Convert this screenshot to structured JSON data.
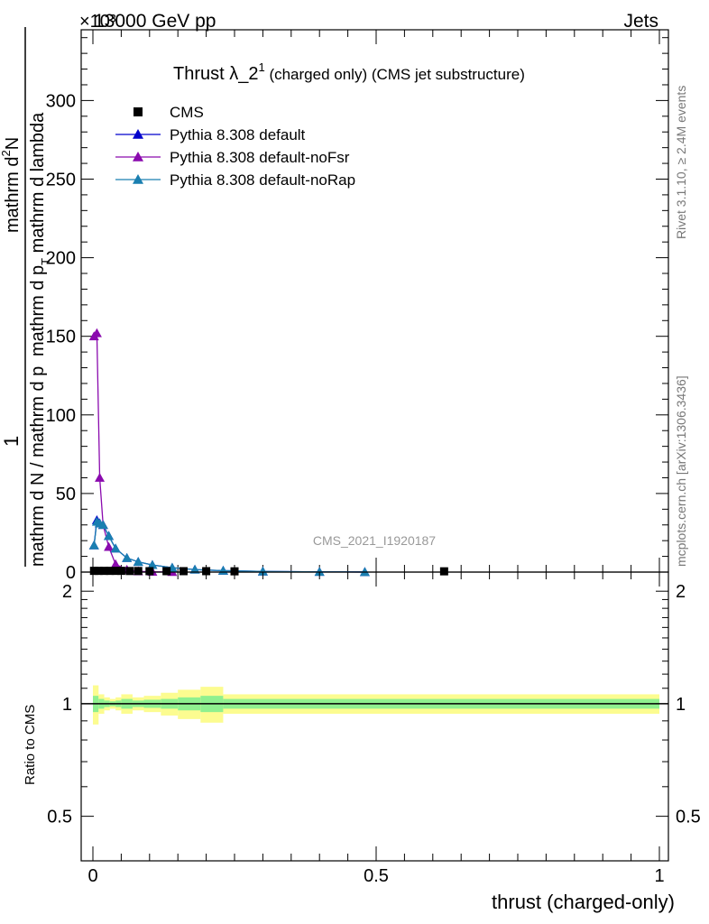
{
  "header": {
    "energy": "13000 GeV pp",
    "process": "Jets",
    "exponent": "×10³"
  },
  "chart_data": {
    "type": "line",
    "title_main": "Thrust λ_2",
    "title_sup": "1",
    "title_suffix": " (charged only) (CMS jet substructure)",
    "ylabel_numer": "1",
    "ylabel_denom_text": "mathrm d N / mathrm d p",
    "ylabel_numer_main": "mathrm d",
    "ylabel_numer_sup": "2",
    "ylabel_numer_N": "N",
    "ylabel_upper_text": "mathrm d p",
    "ylabel_upper_tail": " mathrm d lambda",
    "ylabel_mid_text": " mathrm d p",
    "ylabel_sub_T": "T",
    "ylabel_mathrm": "mathrm",
    "xlabel": "thrust (charged-only)",
    "ratio_ylabel": "Ratio to CMS",
    "watermark": "CMS_2021_I1920187",
    "side_label_top": "Rivet 3.1.10, ≥ 2.4M events",
    "side_label_bottom": "mcplots.cern.ch [arXiv:1306.3436]",
    "xlim": [
      0,
      1
    ],
    "ylim_main": [
      0,
      345
    ],
    "ratio_ylim": [
      0.38,
      2.25
    ],
    "main_yticks": [
      "0",
      "50",
      "100",
      "150",
      "200",
      "250",
      "300"
    ],
    "xticks": [
      "0",
      "0.5",
      "1"
    ],
    "ratio_yticks": [
      "0.5",
      "1",
      "2"
    ],
    "legend": [
      {
        "label": "CMS",
        "color": "#000000",
        "marker": "square"
      },
      {
        "label": "Pythia 8.308 default",
        "color": "#0000cc",
        "marker": "triangle"
      },
      {
        "label": "Pythia 8.308 default-noFsr",
        "color": "#8a0aae",
        "marker": "triangle"
      },
      {
        "label": "Pythia 8.308 default-noRap",
        "color": "#1a7fb0",
        "marker": "triangle"
      }
    ],
    "series": [
      {
        "name": "CMS",
        "color": "#000000",
        "x": [
          0.002,
          0.01,
          0.02,
          0.03,
          0.04,
          0.05,
          0.065,
          0.08,
          0.1,
          0.13,
          0.16,
          0.2,
          0.25,
          0.62
        ],
        "y": [
          0.5,
          0.5,
          0.5,
          0.5,
          0.5,
          0.5,
          0.4,
          0.4,
          0.3,
          0.3,
          0.3,
          0.3,
          0.2,
          0.2
        ]
      },
      {
        "name": "Pythia 8.308 default",
        "color": "#0000cc",
        "x": [
          0.002,
          0.007,
          0.012,
          0.018,
          0.028,
          0.04,
          0.06,
          0.08,
          0.105,
          0.14,
          0.18,
          0.23,
          0.3,
          0.4,
          0.48
        ],
        "y": [
          17,
          33,
          31,
          30,
          23,
          15,
          9,
          6.5,
          4.5,
          2.8,
          1.6,
          0.9,
          0.4,
          0.15,
          0.05
        ]
      },
      {
        "name": "Pythia 8.308 default-noFsr",
        "color": "#8a0aae",
        "x": [
          0.002,
          0.007,
          0.012,
          0.018,
          0.028,
          0.04,
          0.06,
          0.08,
          0.105,
          0.14
        ],
        "y": [
          150,
          152,
          60,
          30,
          16,
          5,
          1.5,
          0.5,
          0.2,
          0.1
        ]
      },
      {
        "name": "Pythia 8.308 default-noRap",
        "color": "#1a7fb0",
        "x": [
          0.002,
          0.007,
          0.012,
          0.018,
          0.028,
          0.04,
          0.06,
          0.08,
          0.105,
          0.14,
          0.18,
          0.23,
          0.3,
          0.4,
          0.48
        ],
        "y": [
          17,
          32,
          31,
          30,
          23,
          15,
          9,
          6.5,
          4.5,
          2.8,
          1.6,
          0.9,
          0.4,
          0.15,
          0.05
        ]
      }
    ],
    "ratio_band": {
      "x_edges": [
        0,
        0.01,
        0.02,
        0.03,
        0.04,
        0.05,
        0.07,
        0.09,
        0.12,
        0.15,
        0.19,
        0.23,
        1.0
      ],
      "green_half": [
        0.05,
        0.03,
        0.02,
        0.015,
        0.02,
        0.03,
        0.02,
        0.025,
        0.03,
        0.04,
        0.05,
        0.03
      ],
      "yellow_half": [
        0.12,
        0.06,
        0.04,
        0.03,
        0.04,
        0.06,
        0.04,
        0.05,
        0.07,
        0.09,
        0.11,
        0.06
      ],
      "green_color": "#8ff08f",
      "yellow_color": "#fcfc90"
    }
  }
}
